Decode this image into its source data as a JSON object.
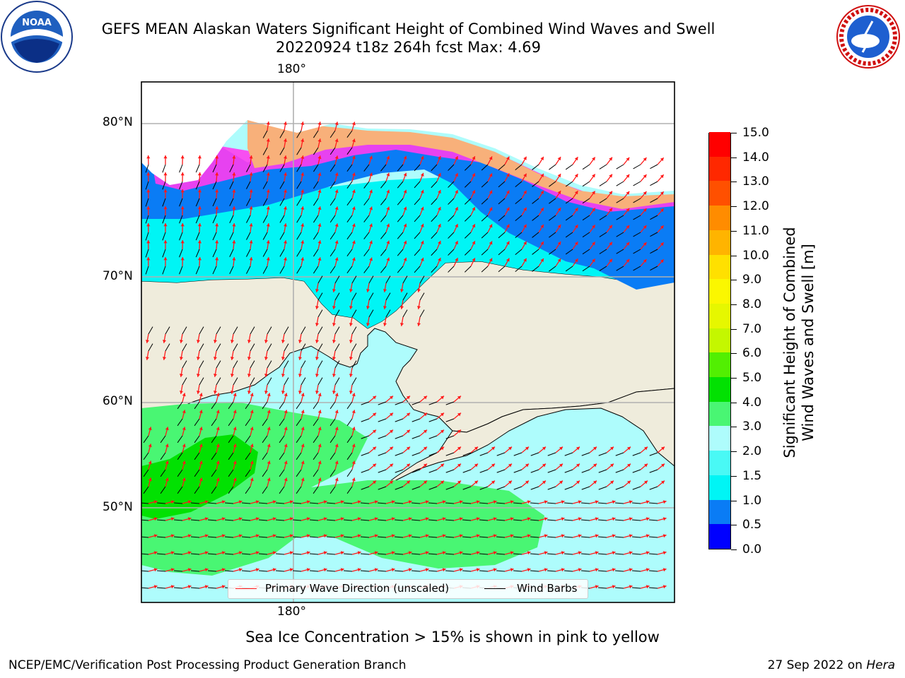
{
  "title": {
    "line1": "GEFS MEAN Alaskan Waters Significant Height of Combined Wind Waves and Swell",
    "line2": "20220924 t18z 264h fcst   Max: 4.69"
  },
  "logos": {
    "left": {
      "text": "NOAA",
      "icon": "noaa-logo"
    },
    "right": {
      "text": "NATIONAL WEATHER SERVICE",
      "icon": "nws-logo"
    }
  },
  "map": {
    "lat_labels": [
      "80°N",
      "70°N",
      "60°N",
      "50°N"
    ],
    "lon_label_top": "180°",
    "lon_label_bottom": "180°",
    "colors": {
      "land": "#efecdc",
      "ocean_low": "#aefcfc",
      "wave_cyan": "#00f5f5",
      "wave_blue": "#0a7cf5",
      "wave_green_light": "#49f673",
      "wave_green": "#02e102",
      "ice_pink": "#ff3cf0",
      "ice_orange": "#f8b07a",
      "ice_yellow": "#f8e040",
      "arrow": "#ff1a1a",
      "barb": "#000000",
      "grid": "#b0b0b0"
    }
  },
  "colorbar": {
    "label_line1": "Significant Height of Combined",
    "label_line2": "Wind Waves and Swell [m]",
    "ticks": [
      "0.0",
      "0.5",
      "1.0",
      "1.5",
      "2.0",
      "3.0",
      "4.0",
      "5.0",
      "6.0",
      "7.0",
      "8.0",
      "9.0",
      "10.0",
      "11.0",
      "12.0",
      "13.0",
      "14.0",
      "15.0"
    ],
    "colors": [
      "#0000ff",
      "#0a7cf5",
      "#00f5f5",
      "#49f9f5",
      "#aefcfc",
      "#49f673",
      "#02e102",
      "#52ef02",
      "#c4f700",
      "#e6f700",
      "#fbf700",
      "#ffe000",
      "#ffb400",
      "#ff8c00",
      "#ff5000",
      "#ff2800",
      "#ff0000"
    ]
  },
  "legend": {
    "primary_wave": "Primary Wave Direction (unscaled)",
    "wind_barbs": "Wind Barbs"
  },
  "footer": {
    "ice_note": "Sea Ice Concentration > 15% is shown in pink to yellow",
    "branch": "NCEP/EMC/Verification Post Processing Product Generation Branch",
    "date": "27 Sep 2022 on ",
    "host": "Hera"
  }
}
